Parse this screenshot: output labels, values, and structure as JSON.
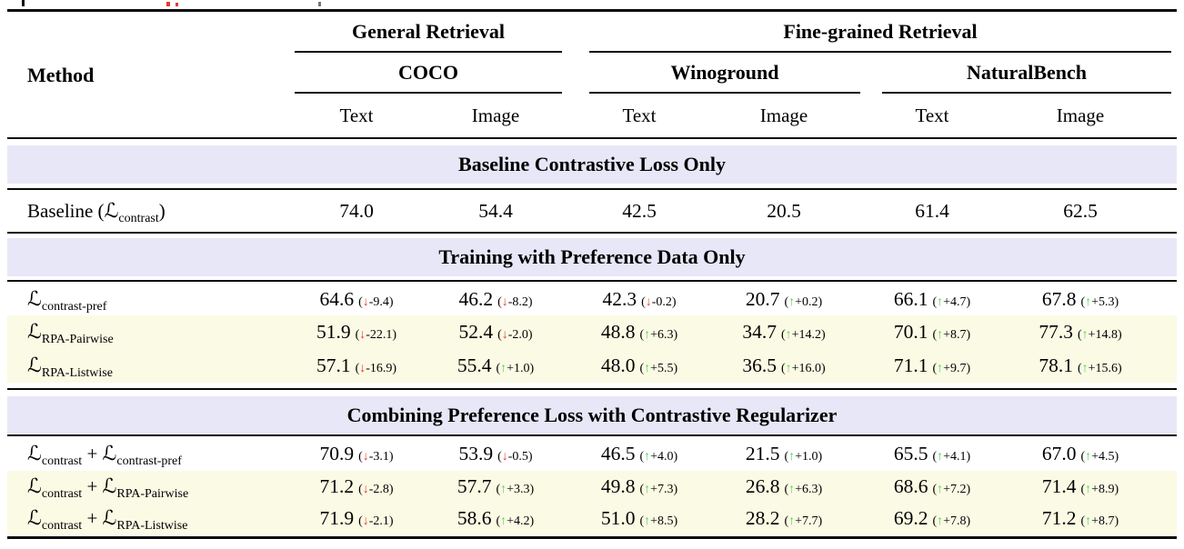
{
  "table": {
    "method_header": "Method",
    "metric_headers": [
      "Text",
      "Image"
    ],
    "groups": [
      {
        "label": "General Retrieval",
        "datasets": [
          "COCO"
        ]
      },
      {
        "label": "Fine-grained Retrieval",
        "datasets": [
          "Winoground",
          "NaturalBench"
        ]
      }
    ],
    "datasets": [
      "COCO",
      "Winoground",
      "NaturalBench"
    ],
    "arrows": {
      "up": "↑",
      "down": "↓"
    },
    "colors": {
      "section_band": "#e8e7f8",
      "highlight_row": "#fbfae4",
      "up_arrow": "#53d453",
      "down_arrow": "#e8392c"
    },
    "sections": [
      {
        "title": "Baseline Contrastive Loss Only",
        "rows": [
          {
            "method": [
              [
                "txt",
                "Baseline ("
              ],
              [
                "cal",
                "L"
              ],
              [
                "sub",
                "contrast"
              ],
              [
                "txt",
                ")"
              ]
            ],
            "highlight": false,
            "cells": [
              {
                "v": "74.0"
              },
              {
                "v": "54.4"
              },
              {
                "v": "42.5"
              },
              {
                "v": "20.5"
              },
              {
                "v": "61.4"
              },
              {
                "v": "62.5"
              }
            ]
          }
        ]
      },
      {
        "title": "Training with Preference Data Only",
        "rows": [
          {
            "method": [
              [
                "cal",
                "L"
              ],
              [
                "sub",
                "contrast-pref"
              ]
            ],
            "highlight": false,
            "cells": [
              {
                "v": "64.6",
                "d": "-9.4",
                "dir": "down"
              },
              {
                "v": "46.2",
                "d": "-8.2",
                "dir": "down"
              },
              {
                "v": "42.3",
                "d": "-0.2",
                "dir": "down"
              },
              {
                "v": "20.7",
                "d": "+0.2",
                "dir": "up"
              },
              {
                "v": "66.1",
                "d": "+4.7",
                "dir": "up"
              },
              {
                "v": "67.8",
                "d": "+5.3",
                "dir": "up"
              }
            ]
          },
          {
            "method": [
              [
                "cal",
                "L"
              ],
              [
                "sub",
                "RPA-Pairwise"
              ]
            ],
            "highlight": true,
            "cells": [
              {
                "v": "51.9",
                "d": "-22.1",
                "dir": "down"
              },
              {
                "v": "52.4",
                "d": "-2.0",
                "dir": "down"
              },
              {
                "v": "48.8",
                "d": "+6.3",
                "dir": "up"
              },
              {
                "v": "34.7",
                "d": "+14.2",
                "dir": "up"
              },
              {
                "v": "70.1",
                "d": "+8.7",
                "dir": "up"
              },
              {
                "v": "77.3",
                "d": "+14.8",
                "dir": "up"
              }
            ]
          },
          {
            "method": [
              [
                "cal",
                "L"
              ],
              [
                "sub",
                "RPA-Listwise"
              ]
            ],
            "highlight": true,
            "cells": [
              {
                "v": "57.1",
                "d": "-16.9",
                "dir": "down"
              },
              {
                "v": "55.4",
                "d": "+1.0",
                "dir": "up"
              },
              {
                "v": "48.0",
                "d": "+5.5",
                "dir": "up"
              },
              {
                "v": "36.5",
                "d": "+16.0",
                "dir": "up"
              },
              {
                "v": "71.1",
                "d": "+9.7",
                "dir": "up"
              },
              {
                "v": "78.1",
                "d": "+15.6",
                "dir": "up"
              }
            ]
          }
        ]
      },
      {
        "title": "Combining Preference Loss with Contrastive Regularizer",
        "rows": [
          {
            "method": [
              [
                "cal",
                "L"
              ],
              [
                "sub",
                "contrast"
              ],
              [
                "txt",
                " + "
              ],
              [
                "cal",
                "L"
              ],
              [
                "sub",
                "contrast-pref"
              ]
            ],
            "highlight": false,
            "cells": [
              {
                "v": "70.9",
                "d": "-3.1",
                "dir": "down"
              },
              {
                "v": "53.9",
                "d": "-0.5",
                "dir": "down"
              },
              {
                "v": "46.5",
                "d": "+4.0",
                "dir": "up"
              },
              {
                "v": "21.5",
                "d": "+1.0",
                "dir": "up"
              },
              {
                "v": "65.5",
                "d": "+4.1",
                "dir": "up"
              },
              {
                "v": "67.0",
                "d": "+4.5",
                "dir": "up"
              }
            ]
          },
          {
            "method": [
              [
                "cal",
                "L"
              ],
              [
                "sub",
                "contrast"
              ],
              [
                "txt",
                " + "
              ],
              [
                "cal",
                "L"
              ],
              [
                "sub",
                "RPA-Pairwise"
              ]
            ],
            "highlight": true,
            "cells": [
              {
                "v": "71.2",
                "d": "-2.8",
                "dir": "down"
              },
              {
                "v": "57.7",
                "d": "+3.3",
                "dir": "up"
              },
              {
                "v": "49.8",
                "d": "+7.3",
                "dir": "up"
              },
              {
                "v": "26.8",
                "d": "+6.3",
                "dir": "up"
              },
              {
                "v": "68.6",
                "d": "+7.2",
                "dir": "up"
              },
              {
                "v": "71.4",
                "d": "+8.9",
                "dir": "up"
              }
            ]
          },
          {
            "method": [
              [
                "cal",
                "L"
              ],
              [
                "sub",
                "contrast"
              ],
              [
                "txt",
                " + "
              ],
              [
                "cal",
                "L"
              ],
              [
                "sub",
                "RPA-Listwise"
              ]
            ],
            "highlight": true,
            "cells": [
              {
                "v": "71.9",
                "d": "-2.1",
                "dir": "down"
              },
              {
                "v": "58.6",
                "d": "+4.2",
                "dir": "up"
              },
              {
                "v": "51.0",
                "d": "+8.5",
                "dir": "up"
              },
              {
                "v": "28.2",
                "d": "+7.7",
                "dir": "up"
              },
              {
                "v": "69.2",
                "d": "+7.8",
                "dir": "up"
              },
              {
                "v": "71.2",
                "d": "+8.7",
                "dir": "up"
              }
            ]
          }
        ]
      }
    ]
  }
}
